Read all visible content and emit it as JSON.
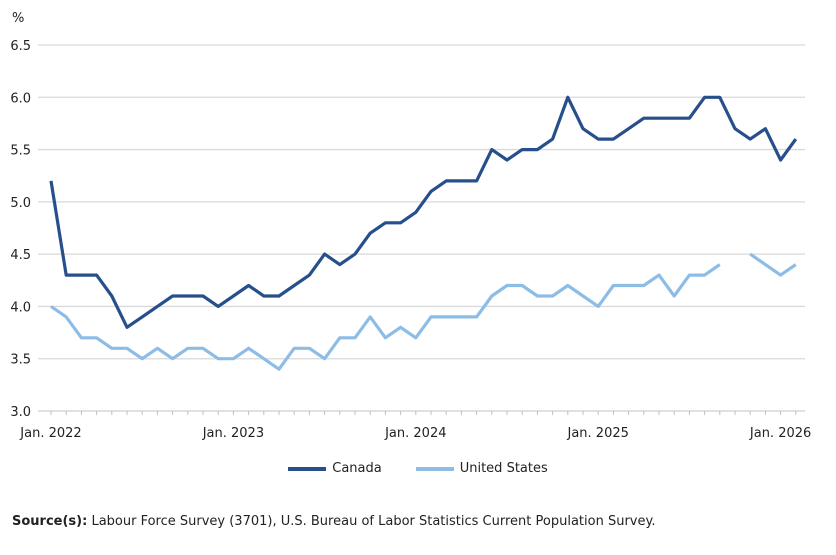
{
  "chart_data": {
    "type": "line",
    "title": "",
    "ylabel": "%",
    "xlabel": "",
    "ylim": [
      3.0,
      6.5
    ],
    "yticks": [
      "3.0",
      "3.5",
      "4.0",
      "4.5",
      "5.0",
      "5.5",
      "6.0",
      "6.5"
    ],
    "xtick_labels": [
      "Jan. 2022",
      "Jan. 2023",
      "Jan. 2024",
      "Jan. 2025",
      "Jan. 2026"
    ],
    "x_start": "Jan. 2022",
    "x_end": "Feb. 2026",
    "grid": "horizontal",
    "legend_position": "bottom",
    "x": [
      "2022-01",
      "2022-02",
      "2022-03",
      "2022-04",
      "2022-05",
      "2022-06",
      "2022-07",
      "2022-08",
      "2022-09",
      "2022-10",
      "2022-11",
      "2022-12",
      "2023-01",
      "2023-02",
      "2023-03",
      "2023-04",
      "2023-05",
      "2023-06",
      "2023-07",
      "2023-08",
      "2023-09",
      "2023-10",
      "2023-11",
      "2023-12",
      "2024-01",
      "2024-02",
      "2024-03",
      "2024-04",
      "2024-05",
      "2024-06",
      "2024-07",
      "2024-08",
      "2024-09",
      "2024-10",
      "2024-11",
      "2024-12",
      "2025-01",
      "2025-02",
      "2025-03",
      "2025-04",
      "2025-05",
      "2025-06",
      "2025-07",
      "2025-08",
      "2025-09",
      "2025-10",
      "2025-11",
      "2025-12",
      "2026-01",
      "2026-02"
    ],
    "series": [
      {
        "name": "Canada",
        "color": "#264f8c",
        "values": [
          5.2,
          4.3,
          4.3,
          4.3,
          4.1,
          3.8,
          3.9,
          4.0,
          4.1,
          4.1,
          4.1,
          4.0,
          4.1,
          4.2,
          4.1,
          4.1,
          4.2,
          4.3,
          4.5,
          4.4,
          4.5,
          4.7,
          4.8,
          4.8,
          4.9,
          5.1,
          5.2,
          5.2,
          5.2,
          5.5,
          5.4,
          5.5,
          5.5,
          5.6,
          6.0,
          5.7,
          5.6,
          5.6,
          5.7,
          5.8,
          5.8,
          5.8,
          5.8,
          6.0,
          6.0,
          5.7,
          5.6,
          5.7,
          5.4,
          5.6
        ]
      },
      {
        "name": "United States",
        "color": "#8dbde6",
        "values": [
          4.0,
          3.9,
          3.7,
          3.7,
          3.6,
          3.6,
          3.5,
          3.6,
          3.5,
          3.6,
          3.6,
          3.5,
          3.5,
          3.6,
          3.5,
          3.4,
          3.6,
          3.6,
          3.5,
          3.7,
          3.7,
          3.9,
          3.7,
          3.8,
          3.7,
          3.9,
          3.9,
          3.9,
          3.9,
          4.1,
          4.2,
          4.2,
          4.1,
          4.1,
          4.2,
          4.1,
          4.0,
          4.2,
          4.2,
          4.2,
          4.3,
          4.1,
          4.3,
          4.3,
          4.4,
          null,
          4.5,
          4.4,
          4.3,
          4.4
        ]
      }
    ]
  },
  "source": {
    "label": "Source(s):",
    "text": " Labour Force Survey (3701), U.S. Bureau of Labor Statistics Current Population Survey."
  }
}
